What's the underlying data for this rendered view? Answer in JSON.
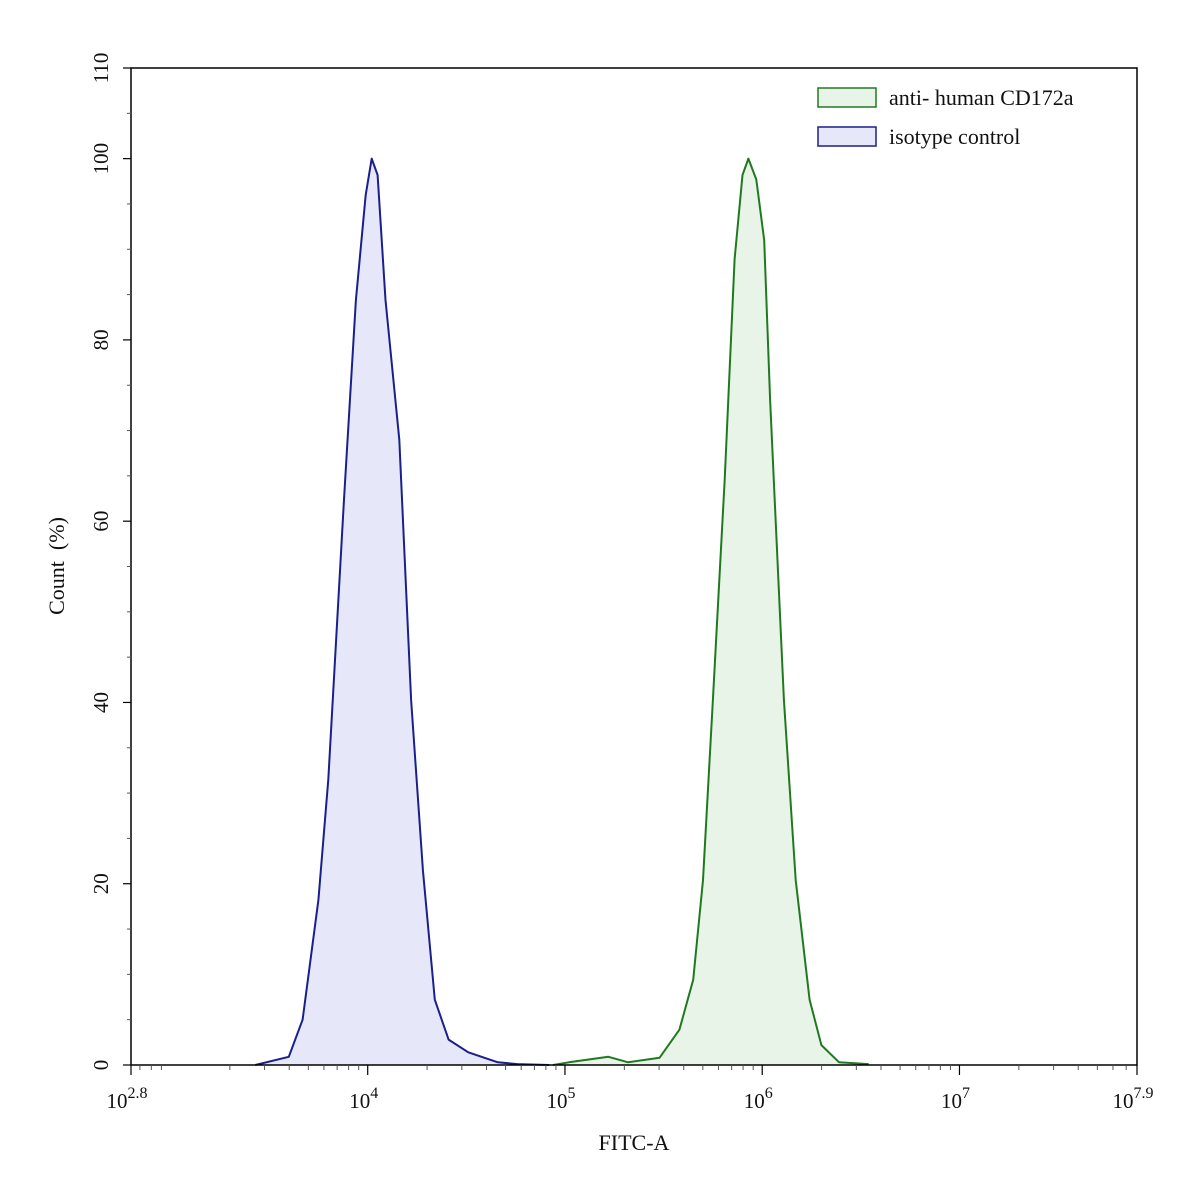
{
  "chart_data": {
    "type": "area",
    "title": "",
    "xlabel": "FITC-A",
    "ylabel": "Count  (%)",
    "x_scale": "log10",
    "xlim_log10": [
      2.8,
      7.9
    ],
    "ylim": [
      0,
      110
    ],
    "grid": false,
    "legend_position": "top-right",
    "x_ticks": [
      {
        "base": "10",
        "exp": "2.8",
        "log10": 2.8
      },
      {
        "base": "10",
        "exp": "4",
        "log10": 4
      },
      {
        "base": "10",
        "exp": "5",
        "log10": 5
      },
      {
        "base": "10",
        "exp": "6",
        "log10": 6
      },
      {
        "base": "10",
        "exp": "7",
        "log10": 7
      },
      {
        "base": "10",
        "exp": "7.9",
        "log10": 7.9
      }
    ],
    "y_ticks": [
      "0",
      "20",
      "40",
      "60",
      "80",
      "100",
      "110"
    ],
    "series": [
      {
        "name": "anti- human CD172a",
        "line_color": "#1f7a1f",
        "fill_color": "#e8f4e8",
        "x_log10": [
          4.94,
          5.02,
          5.22,
          5.32,
          5.48,
          5.58,
          5.65,
          5.7,
          5.75,
          5.81,
          5.86,
          5.9,
          5.93,
          5.97,
          6.01,
          6.04,
          6.11,
          6.17,
          6.24,
          6.3,
          6.39,
          6.54
        ],
        "y": [
          0,
          0.3,
          0.9,
          0.3,
          0.8,
          3.9,
          9.4,
          20.4,
          40.3,
          64.6,
          88.9,
          98.2,
          100,
          97.7,
          91,
          73.4,
          40.3,
          20.4,
          7.2,
          2.2,
          0.3,
          0.1
        ]
      },
      {
        "name": "isotype control",
        "line_color": "#1a1f8c",
        "fill_color": "#e6e8fa",
        "x_log10": [
          3.43,
          3.6,
          3.67,
          3.75,
          3.8,
          3.88,
          3.94,
          3.99,
          4.02,
          4.05,
          4.09,
          4.16,
          4.22,
          4.28,
          4.34,
          4.41,
          4.51,
          4.59,
          4.66,
          4.76,
          4.92
        ],
        "y": [
          0,
          0.9,
          5,
          18.2,
          31.5,
          62.4,
          84.4,
          96,
          100,
          98.2,
          84.4,
          69,
          40.3,
          21.5,
          7.2,
          2.8,
          1.4,
          0.8,
          0.3,
          0.1,
          0
        ]
      }
    ]
  }
}
